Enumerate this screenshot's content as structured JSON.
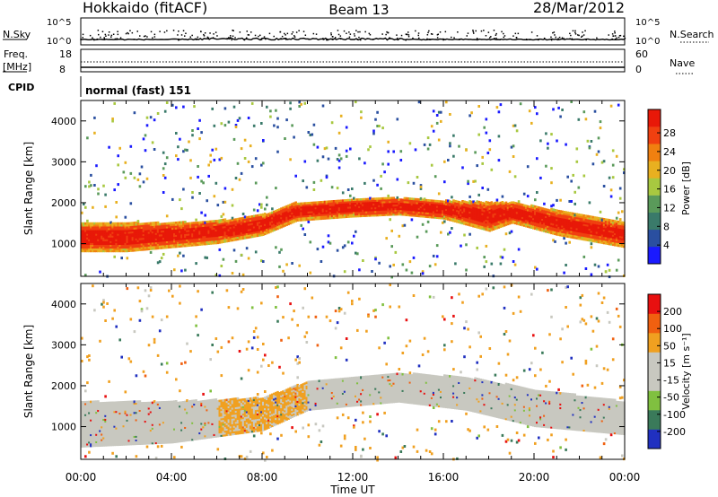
{
  "header": {
    "radar": "Hokkaido (fitACF)",
    "beam": "Beam 13",
    "date": "28/Mar/2012"
  },
  "top_panels": {
    "nsky_label": "N.Sky",
    "nsky_ticks": [
      "10^5",
      "10^0"
    ],
    "nsearch_label": "N.Search",
    "nsearch_ticks": [
      "10^5",
      "10^0"
    ],
    "freq_label": "Freq.",
    "freq_unit": "[MHz]",
    "freq_ticks": [
      "18",
      "8"
    ],
    "nave_label": "Nave",
    "nave_ticks": [
      "60",
      "0"
    ],
    "cpid_label": "CPID",
    "cpid_value": "normal (fast) 151"
  },
  "chart_data": [
    {
      "type": "heatmap",
      "name": "power",
      "ylabel": "Slant Range [km]",
      "ylim": [
        200,
        4500
      ],
      "yticks": [
        "1000",
        "2000",
        "3000",
        "4000"
      ],
      "xlim": [
        0,
        24
      ],
      "colorbar_label": "Power [dB]",
      "colorbar_ticks": [
        "4",
        "8",
        "12",
        "16",
        "20",
        "24",
        "28"
      ],
      "colors": [
        "#1a1aff",
        "#2a4fa0",
        "#3a7a6a",
        "#5a9a5a",
        "#a8c840",
        "#e8b020",
        "#f08010",
        "#f04010",
        "#e81808"
      ],
      "bands": [
        {
          "t": 0,
          "lo": 800,
          "hi": 1500
        },
        {
          "t": 2,
          "lo": 800,
          "hi": 1500
        },
        {
          "t": 4,
          "lo": 900,
          "hi": 1500
        },
        {
          "t": 6,
          "lo": 1000,
          "hi": 1550
        },
        {
          "t": 8,
          "lo": 1200,
          "hi": 1700
        },
        {
          "t": 9.5,
          "lo": 1550,
          "hi": 2000
        },
        {
          "t": 12,
          "lo": 1650,
          "hi": 2100
        },
        {
          "t": 14,
          "lo": 1700,
          "hi": 2100
        },
        {
          "t": 16,
          "lo": 1600,
          "hi": 2050
        },
        {
          "t": 18,
          "lo": 1300,
          "hi": 2000
        },
        {
          "t": 19,
          "lo": 1500,
          "hi": 2000
        },
        {
          "t": 21,
          "lo": 1200,
          "hi": 1800
        },
        {
          "t": 24,
          "lo": 900,
          "hi": 1500
        }
      ]
    },
    {
      "type": "heatmap",
      "name": "velocity",
      "ylabel": "Slant Range [km]",
      "ylim": [
        200,
        4500
      ],
      "yticks": [
        "1000",
        "2000",
        "3000",
        "4000"
      ],
      "xlim": [
        0,
        24
      ],
      "xticks": [
        "00:00",
        "04:00",
        "08:00",
        "12:00",
        "16:00",
        "20:00",
        "00:00"
      ],
      "xlabel": "Time UT",
      "colorbar_label": "Velocity [m s⁻¹]",
      "colorbar_ticks": [
        "200",
        "100",
        "50",
        "15",
        "-15",
        "-50",
        "-100",
        "-200"
      ],
      "colors": [
        "#2030c0",
        "#3a7a5a",
        "#80c040",
        "#c8c8c0",
        "#c8c8c0",
        "#f0a020",
        "#f06010",
        "#e81010"
      ],
      "bands": [
        {
          "t": 0,
          "lo": 500,
          "hi": 1600
        },
        {
          "t": 4,
          "lo": 600,
          "hi": 1600
        },
        {
          "t": 8,
          "lo": 900,
          "hi": 1700
        },
        {
          "t": 10,
          "lo": 1400,
          "hi": 2100
        },
        {
          "t": 14,
          "lo": 1600,
          "hi": 2300
        },
        {
          "t": 17,
          "lo": 1400,
          "hi": 2200
        },
        {
          "t": 20,
          "lo": 1000,
          "hi": 1900
        },
        {
          "t": 24,
          "lo": 800,
          "hi": 1600
        }
      ]
    }
  ]
}
